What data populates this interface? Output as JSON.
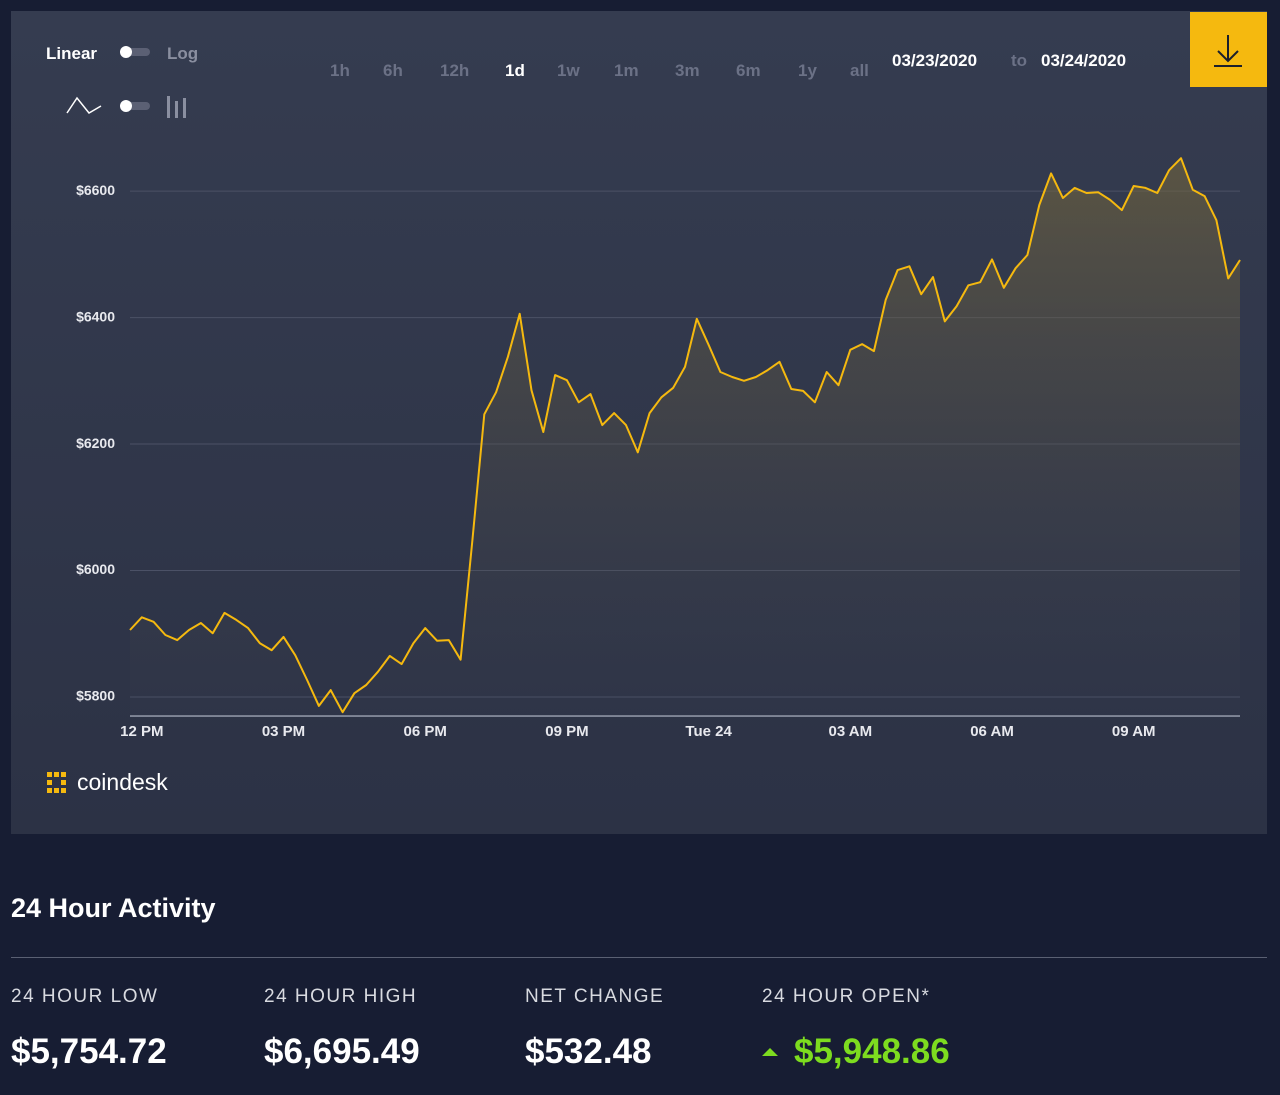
{
  "chart_data": {
    "type": "line",
    "scale_options": [
      "Linear",
      "Log"
    ],
    "ranges": [
      "1h",
      "6h",
      "12h",
      "1d",
      "1w",
      "1m",
      "3m",
      "6m",
      "1y",
      "all"
    ],
    "date_from": "03/23/2020",
    "date_sep": "to",
    "date_to": "03/24/2020",
    "brand": "coindesk",
    "color": "#f5b90f",
    "categories": [
      null,
      "12 PM",
      null,
      null,
      null,
      null,
      null,
      null,
      null,
      null,
      null,
      null,
      null,
      "03 PM",
      null,
      null,
      null,
      null,
      null,
      null,
      null,
      null,
      null,
      null,
      null,
      "06 PM",
      null,
      null,
      null,
      null,
      null,
      null,
      null,
      null,
      null,
      null,
      null,
      "09 PM",
      null,
      null,
      null,
      null,
      null,
      null,
      null,
      null,
      null,
      null,
      null,
      "Tue 24",
      null,
      null,
      null,
      null,
      null,
      null,
      null,
      null,
      null,
      null,
      null,
      "03 AM",
      null,
      null,
      null,
      null,
      null,
      null,
      null,
      null,
      null,
      null,
      null,
      "06 AM",
      null,
      null,
      null,
      null,
      null,
      null,
      null,
      null,
      null,
      null,
      null,
      "09 AM",
      null,
      null,
      null,
      null,
      null,
      null,
      null,
      null,
      null
    ],
    "values": [
      5906,
      5926,
      5919,
      5898,
      5890,
      5906,
      5917,
      5901,
      5933,
      5922,
      5909,
      5885,
      5874,
      5895,
      5866,
      5827,
      5786,
      5811,
      5776,
      5806,
      5819,
      5840,
      5865,
      5852,
      5885,
      5909,
      5889,
      5890,
      5859,
      6048,
      6247,
      6282,
      6338,
      6406,
      6285,
      6219,
      6309,
      6301,
      6266,
      6279,
      6230,
      6249,
      6230,
      6187,
      6249,
      6274,
      6289,
      6322,
      6398,
      6357,
      6314,
      6306,
      6300,
      6306,
      6317,
      6330,
      6287,
      6284,
      6266,
      6314,
      6293,
      6349,
      6358,
      6347,
      6428,
      6475,
      6481,
      6437,
      6464,
      6394,
      6418,
      6451,
      6456,
      6492,
      6447,
      6478,
      6499,
      6578,
      6628,
      6589,
      6605,
      6597,
      6598,
      6586,
      6570,
      6608,
      6605,
      6597,
      6633,
      6652,
      6602,
      6592,
      6554,
      6462,
      6491
    ],
    "ylim": [
      5770,
      6695
    ],
    "yticks": [
      {
        "value": 5800,
        "label": "$5800"
      },
      {
        "value": 6000,
        "label": "$6000"
      },
      {
        "value": 6200,
        "label": "$6200"
      },
      {
        "value": 6400,
        "label": "$6400"
      },
      {
        "value": 6600,
        "label": "$6600"
      }
    ],
    "grid": true
  },
  "activity": {
    "title": "24 Hour Activity",
    "stats": [
      {
        "label": "24 HOUR LOW",
        "value": "$5,754.72"
      },
      {
        "label": "24 HOUR HIGH",
        "value": "$6,695.49"
      },
      {
        "label": "NET CHANGE",
        "value": "$532.48"
      },
      {
        "label": "24 HOUR OPEN*",
        "value": "$5,948.86"
      }
    ]
  }
}
